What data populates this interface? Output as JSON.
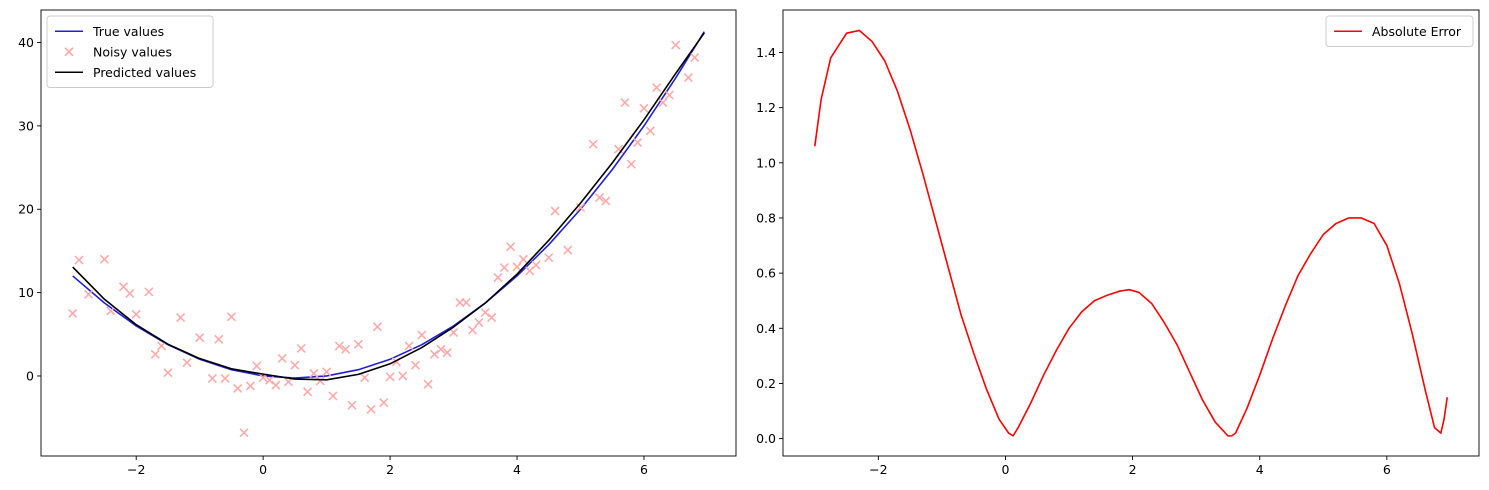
{
  "chart_data": [
    {
      "type": "line",
      "title": "",
      "xlabel": "",
      "ylabel": "",
      "xlim": [
        -3.5,
        7.45
      ],
      "ylim": [
        -9.6,
        43.9
      ],
      "xticks": [
        -2,
        0,
        2,
        4,
        6
      ],
      "xtick_labels": [
        "−2",
        "0",
        "2",
        "4",
        "6"
      ],
      "yticks": [
        0,
        10,
        20,
        30,
        40
      ],
      "ytick_labels": [
        "0",
        "10",
        "20",
        "30",
        "40"
      ],
      "grid": false,
      "legend_position": "upper-left",
      "series": [
        {
          "name": "True values",
          "kind": "line",
          "color": "#1f1fe0",
          "x": [
            -3,
            -2.5,
            -2,
            -1.5,
            -1,
            -0.5,
            0,
            0.5,
            1,
            1.5,
            2,
            2.5,
            3,
            3.5,
            4,
            4.5,
            5,
            5.5,
            6,
            6.5,
            6.95
          ],
          "y": [
            12,
            8.75,
            6,
            3.75,
            2,
            0.75,
            0,
            -0.25,
            0,
            0.75,
            2,
            3.75,
            6,
            8.75,
            12,
            15.75,
            20,
            24.75,
            30,
            35.75,
            41.3
          ]
        },
        {
          "name": "Noisy values",
          "kind": "scatter",
          "marker": "x",
          "color": "#ffaaaa",
          "x": [
            -3,
            -2.9,
            -2.75,
            -2.5,
            -2.4,
            -2.2,
            -2.1,
            -2,
            -1.8,
            -1.7,
            -1.6,
            -1.5,
            -1.3,
            -1.2,
            -1,
            -0.8,
            -0.7,
            -0.6,
            -0.5,
            -0.4,
            -0.3,
            -0.2,
            -0.1,
            0,
            0.1,
            0.2,
            0.3,
            0.4,
            0.5,
            0.6,
            0.7,
            0.8,
            0.9,
            1,
            1.1,
            1.2,
            1.3,
            1.4,
            1.5,
            1.6,
            1.7,
            1.8,
            1.9,
            2,
            2.1,
            2.2,
            2.3,
            2.4,
            2.5,
            2.6,
            2.7,
            2.8,
            2.9,
            3,
            3.1,
            3.2,
            3.3,
            3.4,
            3.5,
            3.6,
            3.7,
            3.8,
            3.9,
            4,
            4.1,
            4.2,
            4.3,
            4.5,
            4.6,
            4.8,
            5,
            5.2,
            5.3,
            5.4,
            5.6,
            5.7,
            5.8,
            5.9,
            6,
            6.1,
            6.2,
            6.3,
            6.4,
            6.5,
            6.7,
            6.8
          ],
          "y": [
            7.5,
            13.9,
            9.8,
            14,
            7.8,
            10.7,
            9.9,
            7.4,
            10.1,
            2.6,
            3.6,
            0.4,
            7,
            1.6,
            4.6,
            -0.3,
            4.4,
            -0.3,
            7.1,
            -1.5,
            -6.8,
            -1.2,
            1.2,
            -0.2,
            -0.5,
            -1.1,
            2.1,
            -0.7,
            1.3,
            3.3,
            -1.9,
            0.3,
            -0.6,
            0.5,
            -2.4,
            3.6,
            3.2,
            -3.5,
            3.8,
            -0.2,
            -4,
            5.9,
            -3.2,
            -0.1,
            1.7,
            0,
            3.6,
            1.3,
            4.9,
            -1,
            2.6,
            3.2,
            2.8,
            5.2,
            8.8,
            8.8,
            5.5,
            6.4,
            7.6,
            7,
            11.8,
            13,
            15.5,
            13.1,
            14,
            12.6,
            13.3,
            14.2,
            19.8,
            15.1,
            20.2,
            27.8,
            21.4,
            21,
            27.2,
            32.8,
            25.4,
            28,
            32.1,
            29.4,
            34.6,
            32.8,
            33.7,
            39.7,
            35.8,
            38.2
          ]
        },
        {
          "name": "Predicted values",
          "kind": "line",
          "color": "#000000",
          "x": [
            -3,
            -2.5,
            -2,
            -1.5,
            -1,
            -0.5,
            0,
            0.5,
            1,
            1.5,
            2,
            2.5,
            3,
            3.5,
            4,
            4.5,
            5,
            5.5,
            6,
            6.5,
            6.95
          ],
          "y": [
            13.06,
            9.2,
            6.15,
            3.81,
            2.09,
            0.86,
            0.22,
            -0.37,
            -0.46,
            0.19,
            1.46,
            3.41,
            5.87,
            8.75,
            12.21,
            16.27,
            20.73,
            25.55,
            30.73,
            36.29,
            41.15
          ]
        }
      ]
    },
    {
      "type": "line",
      "title": "",
      "xlabel": "",
      "ylabel": "",
      "xlim": [
        -3.5,
        7.45
      ],
      "ylim": [
        -0.063,
        1.554
      ],
      "xticks": [
        -2,
        0,
        2,
        4,
        6
      ],
      "xtick_labels": [
        "−2",
        "0",
        "2",
        "4",
        "6"
      ],
      "yticks": [
        0,
        0.2,
        0.4,
        0.6,
        0.8,
        1,
        1.2,
        1.4
      ],
      "ytick_labels": [
        "0.0",
        "0.2",
        "0.4",
        "0.6",
        "0.8",
        "1.0",
        "1.2",
        "1.4"
      ],
      "grid": false,
      "legend_position": "upper-right",
      "series": [
        {
          "name": "Absolute Error",
          "kind": "line",
          "color": "#ff0000",
          "x": [
            -3,
            -2.9,
            -2.75,
            -2.5,
            -2.3,
            -2.1,
            -1.9,
            -1.7,
            -1.5,
            -1.3,
            -1.1,
            -0.9,
            -0.7,
            -0.5,
            -0.3,
            -0.1,
            0.05,
            0.12,
            0.2,
            0.4,
            0.6,
            0.8,
            1,
            1.2,
            1.4,
            1.6,
            1.8,
            1.95,
            2.1,
            2.3,
            2.5,
            2.7,
            2.9,
            3.1,
            3.3,
            3.5,
            3.56,
            3.62,
            3.8,
            4,
            4.2,
            4.4,
            4.6,
            4.8,
            5,
            5.2,
            5.4,
            5.6,
            5.8,
            6,
            6.2,
            6.4,
            6.6,
            6.75,
            6.85,
            6.9,
            6.95
          ],
          "y": [
            1.06,
            1.23,
            1.38,
            1.47,
            1.48,
            1.44,
            1.37,
            1.26,
            1.12,
            0.96,
            0.79,
            0.62,
            0.45,
            0.31,
            0.18,
            0.07,
            0.02,
            0.01,
            0.04,
            0.13,
            0.23,
            0.32,
            0.4,
            0.46,
            0.5,
            0.52,
            0.535,
            0.54,
            0.53,
            0.49,
            0.42,
            0.34,
            0.24,
            0.14,
            0.06,
            0.01,
            0.01,
            0.02,
            0.11,
            0.23,
            0.36,
            0.48,
            0.59,
            0.67,
            0.74,
            0.78,
            0.8,
            0.8,
            0.78,
            0.7,
            0.56,
            0.38,
            0.18,
            0.04,
            0.02,
            0.07,
            0.15
          ]
        }
      ]
    }
  ]
}
